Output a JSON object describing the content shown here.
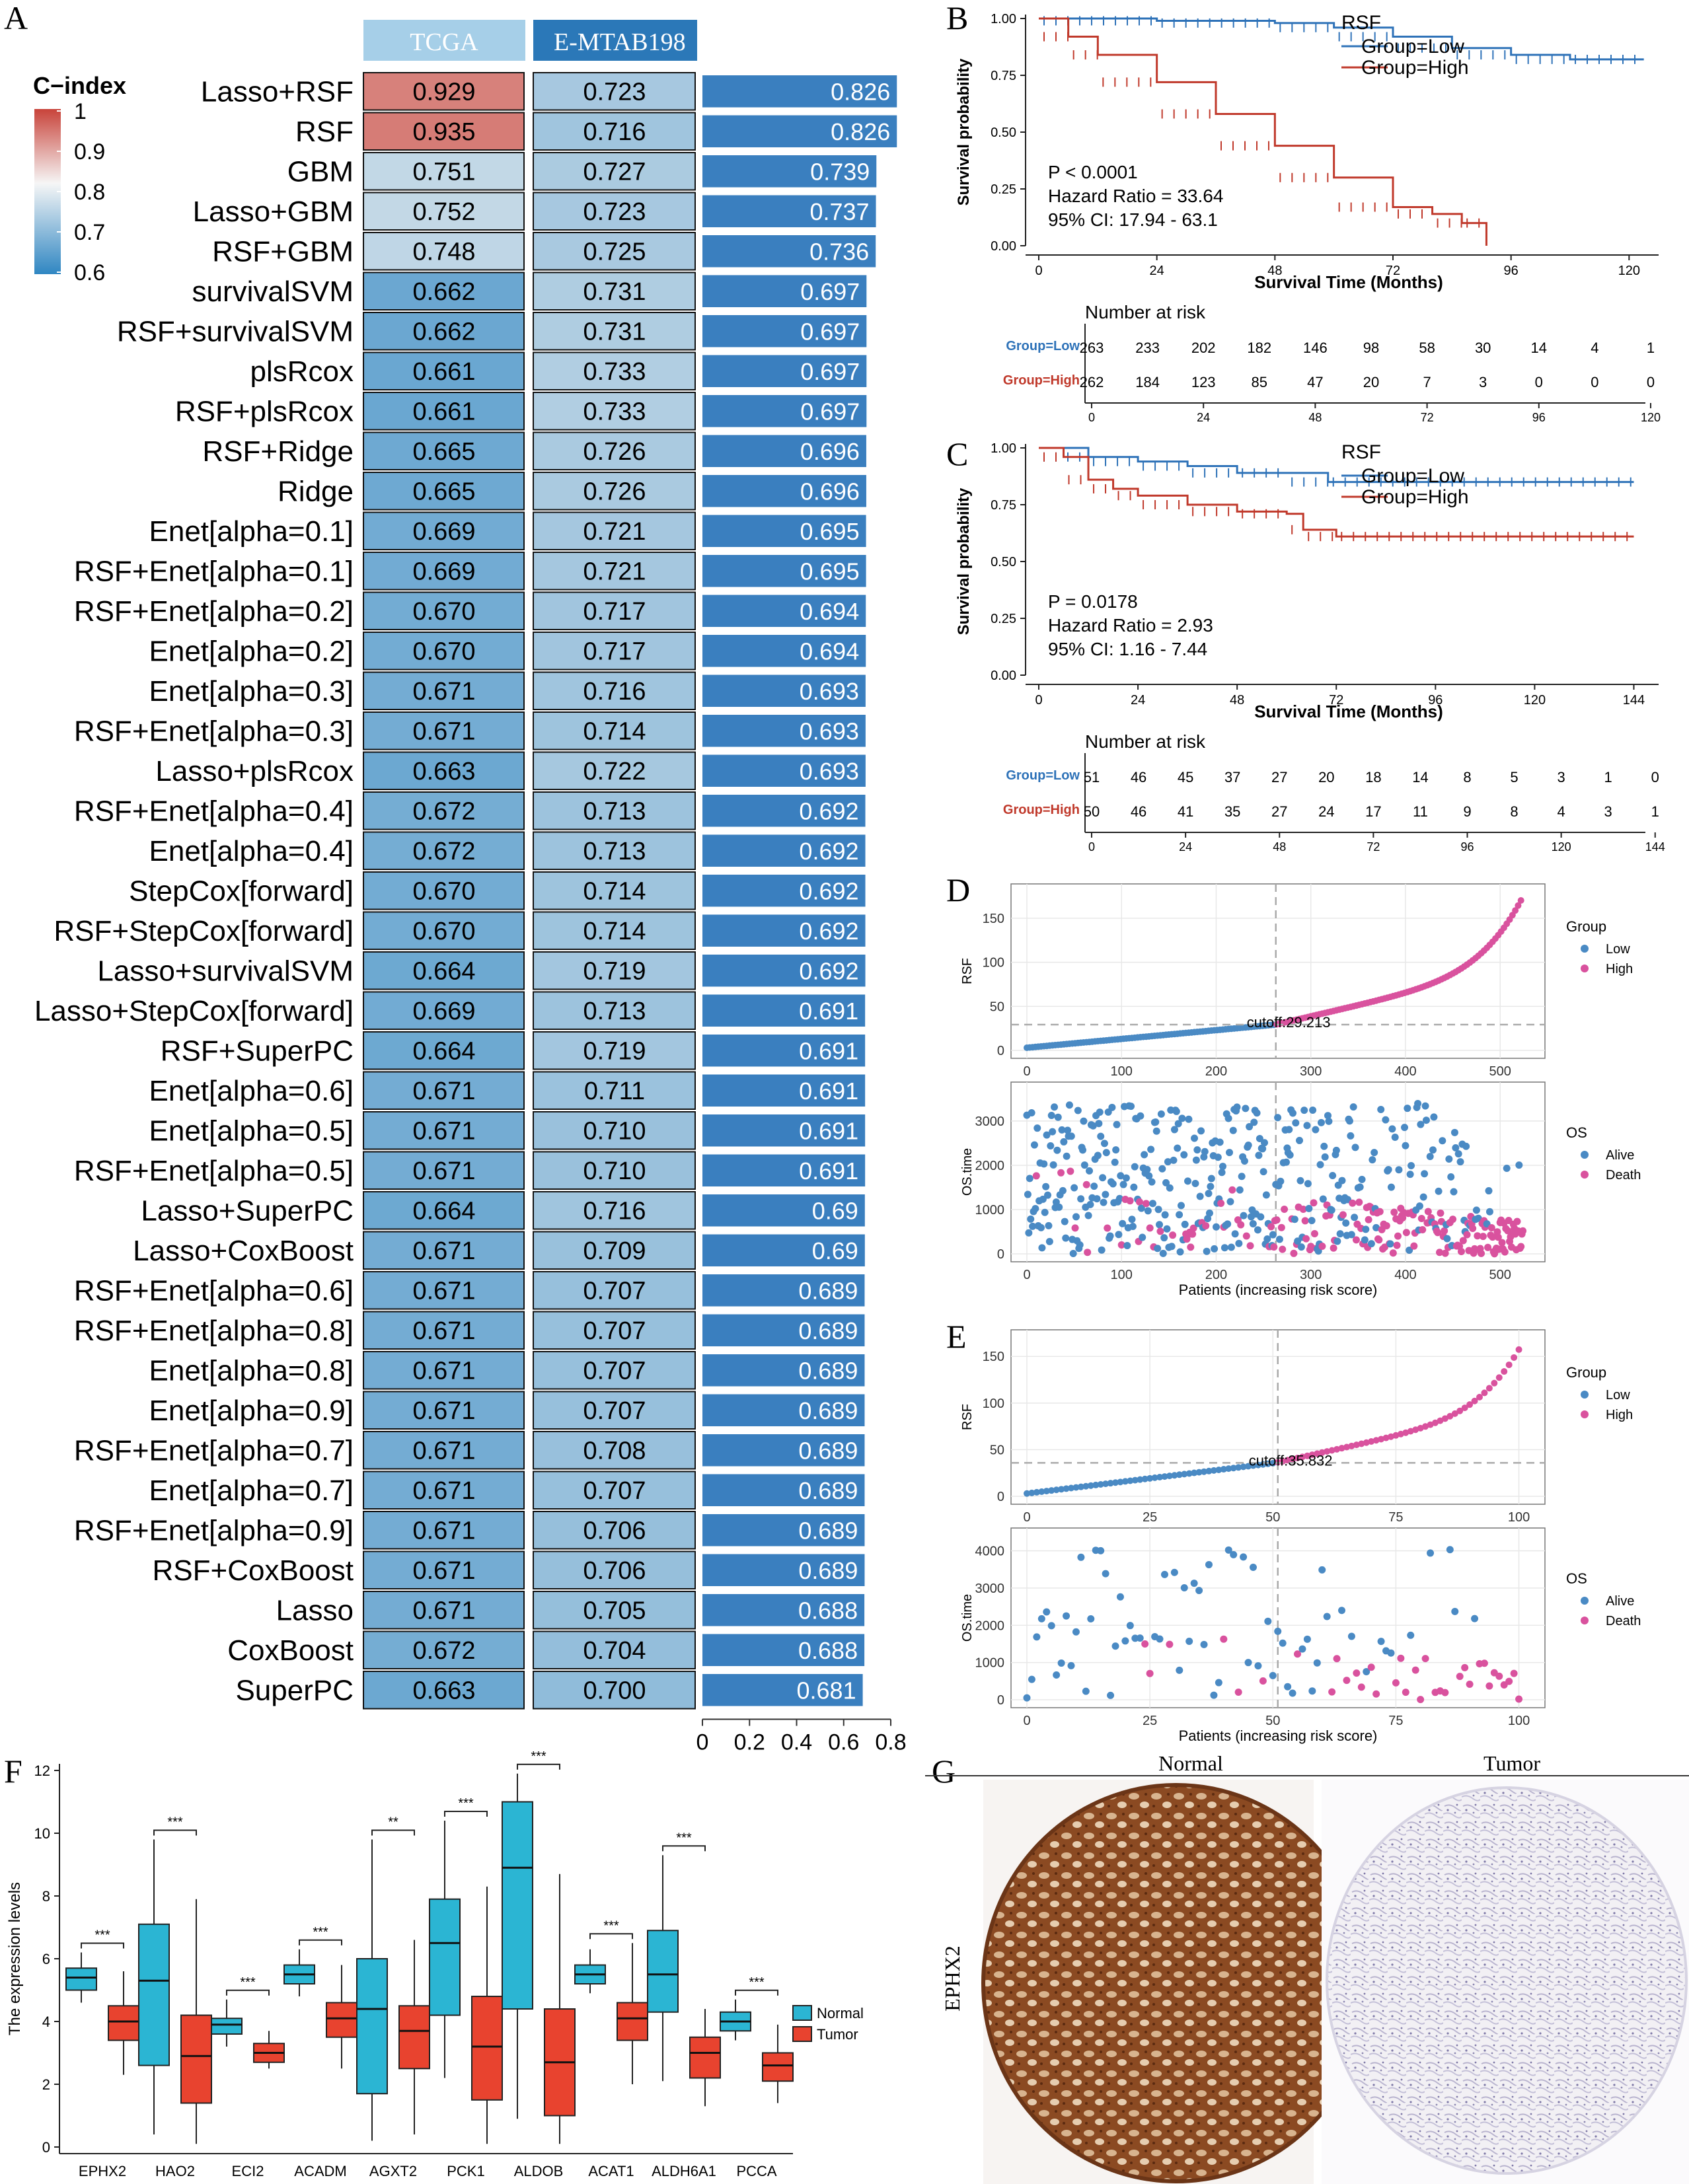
{
  "panels": {
    "A": "A",
    "B": "B",
    "C": "C",
    "D": "D",
    "E": "E",
    "F": "F",
    "G": "G"
  },
  "heatmap": {
    "colorbar_title": "C−index",
    "colorbar_ticks": [
      "1",
      "0.9",
      "0.8",
      "0.7",
      "0.6"
    ],
    "col_headers": [
      "TCGA",
      "E-MTAB198"
    ],
    "colors": {
      "high": "#d6604d",
      "mid": "#f7f7f7",
      "low": "#2f86c2",
      "bar": "#3a7fbf",
      "tcga_header": "#a6cfe8",
      "emtab_header": "#2b78b8"
    },
    "bar_axis_ticks": [
      "0",
      "0.2",
      "0.4",
      "0.6",
      "0.8"
    ],
    "rows": [
      {
        "model": "Lasso+RSF",
        "tcga": 0.929,
        "emtab": 0.723,
        "mean": 0.826
      },
      {
        "model": "RSF",
        "tcga": 0.935,
        "emtab": 0.716,
        "mean": 0.826
      },
      {
        "model": "GBM",
        "tcga": 0.751,
        "emtab": 0.727,
        "mean": 0.739
      },
      {
        "model": "Lasso+GBM",
        "tcga": 0.752,
        "emtab": 0.723,
        "mean": 0.737
      },
      {
        "model": "RSF+GBM",
        "tcga": 0.748,
        "emtab": 0.725,
        "mean": 0.736
      },
      {
        "model": "survivalSVM",
        "tcga": 0.662,
        "emtab": 0.731,
        "mean": 0.697
      },
      {
        "model": "RSF+survivalSVM",
        "tcga": 0.662,
        "emtab": 0.731,
        "mean": 0.697
      },
      {
        "model": "plsRcox",
        "tcga": 0.661,
        "emtab": 0.733,
        "mean": 0.697
      },
      {
        "model": "RSF+plsRcox",
        "tcga": 0.661,
        "emtab": 0.733,
        "mean": 0.697
      },
      {
        "model": "RSF+Ridge",
        "tcga": 0.665,
        "emtab": 0.726,
        "mean": 0.696
      },
      {
        "model": "Ridge",
        "tcga": 0.665,
        "emtab": 0.726,
        "mean": 0.696
      },
      {
        "model": "Enet[alpha=0.1]",
        "tcga": 0.669,
        "emtab": 0.721,
        "mean": 0.695
      },
      {
        "model": "RSF+Enet[alpha=0.1]",
        "tcga": 0.669,
        "emtab": 0.721,
        "mean": 0.695
      },
      {
        "model": "RSF+Enet[alpha=0.2]",
        "tcga": 0.67,
        "emtab": 0.717,
        "mean": 0.694
      },
      {
        "model": "Enet[alpha=0.2]",
        "tcga": 0.67,
        "emtab": 0.717,
        "mean": 0.694
      },
      {
        "model": "Enet[alpha=0.3]",
        "tcga": 0.671,
        "emtab": 0.716,
        "mean": 0.693
      },
      {
        "model": "RSF+Enet[alpha=0.3]",
        "tcga": 0.671,
        "emtab": 0.714,
        "mean": 0.693
      },
      {
        "model": "Lasso+plsRcox",
        "tcga": 0.663,
        "emtab": 0.722,
        "mean": 0.693
      },
      {
        "model": "RSF+Enet[alpha=0.4]",
        "tcga": 0.672,
        "emtab": 0.713,
        "mean": 0.692
      },
      {
        "model": "Enet[alpha=0.4]",
        "tcga": 0.672,
        "emtab": 0.713,
        "mean": 0.692
      },
      {
        "model": "StepCox[forward]",
        "tcga": 0.67,
        "emtab": 0.714,
        "mean": 0.692
      },
      {
        "model": "RSF+StepCox[forward]",
        "tcga": 0.67,
        "emtab": 0.714,
        "mean": 0.692
      },
      {
        "model": "Lasso+survivalSVM",
        "tcga": 0.664,
        "emtab": 0.719,
        "mean": 0.692
      },
      {
        "model": "Lasso+StepCox[forward]",
        "tcga": 0.669,
        "emtab": 0.713,
        "mean": 0.691
      },
      {
        "model": "RSF+SuperPC",
        "tcga": 0.664,
        "emtab": 0.719,
        "mean": 0.691
      },
      {
        "model": "Enet[alpha=0.6]",
        "tcga": 0.671,
        "emtab": 0.711,
        "mean": 0.691
      },
      {
        "model": "Enet[alpha=0.5]",
        "tcga": 0.671,
        "emtab": 0.71,
        "mean": 0.691
      },
      {
        "model": "RSF+Enet[alpha=0.5]",
        "tcga": 0.671,
        "emtab": 0.71,
        "mean": 0.691
      },
      {
        "model": "Lasso+SuperPC",
        "tcga": 0.664,
        "emtab": 0.716,
        "mean": 0.69
      },
      {
        "model": "Lasso+CoxBoost",
        "tcga": 0.671,
        "emtab": 0.709,
        "mean": 0.69
      },
      {
        "model": "RSF+Enet[alpha=0.6]",
        "tcga": 0.671,
        "emtab": 0.707,
        "mean": 0.689
      },
      {
        "model": "RSF+Enet[alpha=0.8]",
        "tcga": 0.671,
        "emtab": 0.707,
        "mean": 0.689
      },
      {
        "model": "Enet[alpha=0.8]",
        "tcga": 0.671,
        "emtab": 0.707,
        "mean": 0.689
      },
      {
        "model": "Enet[alpha=0.9]",
        "tcga": 0.671,
        "emtab": 0.707,
        "mean": 0.689
      },
      {
        "model": "RSF+Enet[alpha=0.7]",
        "tcga": 0.671,
        "emtab": 0.708,
        "mean": 0.689
      },
      {
        "model": "Enet[alpha=0.7]",
        "tcga": 0.671,
        "emtab": 0.707,
        "mean": 0.689
      },
      {
        "model": "RSF+Enet[alpha=0.9]",
        "tcga": 0.671,
        "emtab": 0.706,
        "mean": 0.689
      },
      {
        "model": "RSF+CoxBoost",
        "tcga": 0.671,
        "emtab": 0.706,
        "mean": 0.689
      },
      {
        "model": "Lasso",
        "tcga": 0.671,
        "emtab": 0.705,
        "mean": 0.688
      },
      {
        "model": "CoxBoost",
        "tcga": 0.672,
        "emtab": 0.704,
        "mean": 0.688
      },
      {
        "model": "SuperPC",
        "tcga": 0.663,
        "emtab": 0.7,
        "mean": 0.681
      }
    ]
  },
  "km_common": {
    "ylabel": "Survival probability",
    "xlabel": "Survival Time (Months)",
    "yticks": [
      "0.00",
      "0.25",
      "0.50",
      "0.75",
      "1.00"
    ],
    "legend_title": "RSF",
    "legend_low": "Group=Low",
    "legend_high": "Group=High",
    "risk_title": "Number at risk",
    "colors": {
      "low": "#2e72b8",
      "high": "#c0392b"
    }
  },
  "km_B": {
    "p": "P < 0.0001",
    "hr": "Hazard Ratio = 33.64",
    "ci": "95% CI: 17.94 - 63.1",
    "xticks": [
      "0",
      "24",
      "48",
      "72",
      "96",
      "120"
    ],
    "xmax": 126,
    "risk_times": [
      0,
      12,
      24,
      36,
      48,
      60,
      72,
      84,
      96,
      108,
      120
    ],
    "risk_low": [
      "263",
      "233",
      "202",
      "182",
      "146",
      "98",
      "58",
      "30",
      "14",
      "4",
      "1"
    ],
    "risk_high": [
      "262",
      "184",
      "123",
      "85",
      "47",
      "20",
      "7",
      "3",
      "0",
      "0",
      "0"
    ],
    "low_curve": [
      [
        0,
        1.0
      ],
      [
        24,
        0.99
      ],
      [
        48,
        0.98
      ],
      [
        60,
        0.96
      ],
      [
        72,
        0.92
      ],
      [
        84,
        0.87
      ],
      [
        96,
        0.84
      ],
      [
        108,
        0.82
      ],
      [
        123,
        0.82
      ]
    ],
    "high_curve": [
      [
        0,
        1.0
      ],
      [
        6,
        0.92
      ],
      [
        12,
        0.84
      ],
      [
        24,
        0.72
      ],
      [
        36,
        0.58
      ],
      [
        48,
        0.44
      ],
      [
        60,
        0.3
      ],
      [
        72,
        0.17
      ],
      [
        80,
        0.14
      ],
      [
        86,
        0.1
      ],
      [
        90,
        0.1
      ],
      [
        91,
        0.0
      ]
    ]
  },
  "km_C": {
    "p": "P = 0.0178",
    "hr": "Hazard Ratio = 2.93",
    "ci": "95% CI: 1.16 - 7.44",
    "xticks": [
      "0",
      "24",
      "48",
      "72",
      "96",
      "120",
      "144"
    ],
    "xmax": 150,
    "risk_times": [
      0,
      12,
      24,
      36,
      48,
      60,
      72,
      84,
      96,
      108,
      120,
      132,
      144
    ],
    "risk_low": [
      "51",
      "46",
      "45",
      "37",
      "27",
      "20",
      "18",
      "14",
      "8",
      "5",
      "3",
      "1",
      "0"
    ],
    "risk_high": [
      "50",
      "46",
      "41",
      "35",
      "27",
      "24",
      "17",
      "11",
      "9",
      "8",
      "4",
      "3",
      "1"
    ],
    "low_curve": [
      [
        0,
        1.0
      ],
      [
        12,
        0.96
      ],
      [
        24,
        0.94
      ],
      [
        36,
        0.92
      ],
      [
        48,
        0.89
      ],
      [
        60,
        0.89
      ],
      [
        70,
        0.85
      ],
      [
        144,
        0.85
      ]
    ],
    "high_curve": [
      [
        0,
        1.0
      ],
      [
        6,
        0.96
      ],
      [
        12,
        0.86
      ],
      [
        18,
        0.82
      ],
      [
        24,
        0.79
      ],
      [
        36,
        0.75
      ],
      [
        48,
        0.72
      ],
      [
        60,
        0.71
      ],
      [
        64,
        0.64
      ],
      [
        72,
        0.61
      ],
      [
        144,
        0.61
      ]
    ]
  },
  "risk_D": {
    "ylabel": "RSF",
    "cutoff_label": "cutoff:29.213",
    "cutoff": 29.213,
    "n": 525,
    "split": 263,
    "yticks": [
      "0",
      "50",
      "100",
      "150"
    ],
    "xticks": [
      "0",
      "100",
      "200",
      "300",
      "400",
      "500"
    ],
    "ymax": 180,
    "legend_title": "Group",
    "legend_low": "Low",
    "legend_high": "High",
    "scatter_ylabel": "OS.time",
    "scatter_xlabel": "Patients (increasing risk score)",
    "scatter_yticks": [
      "0",
      "1000",
      "2000",
      "3000"
    ],
    "scatter_ymax": 3700,
    "os_title": "OS",
    "os_alive": "Alive",
    "os_death": "Death",
    "colors": {
      "low": "#4a8ac4",
      "high": "#d9529e"
    }
  },
  "risk_E": {
    "ylabel": "RSF",
    "cutoff_label": "cutoff:35.832",
    "cutoff": 35.832,
    "n": 101,
    "split": 51,
    "yticks": [
      "0",
      "50",
      "100",
      "150"
    ],
    "xticks": [
      "0",
      "25",
      "50",
      "75",
      "100"
    ],
    "ymax": 170,
    "legend_title": "Group",
    "legend_low": "Low",
    "legend_high": "High",
    "scatter_ylabel": "OS.time",
    "scatter_xlabel": "Patients (increasing risk score)",
    "scatter_yticks": [
      "0",
      "1000",
      "2000",
      "3000",
      "4000"
    ],
    "scatter_ymax": 4400,
    "os_title": "OS",
    "os_alive": "Alive",
    "os_death": "Death",
    "colors": {
      "low": "#4a8ac4",
      "high": "#d9529e"
    }
  },
  "chart_data": {
    "type": "box",
    "title": "",
    "ylabel": "The expression levels",
    "ylim": [
      0,
      12
    ],
    "yticks": [
      "0",
      "2",
      "4",
      "6",
      "8",
      "10",
      "12"
    ],
    "legend": [
      "Normal",
      "Tumor"
    ],
    "colors": {
      "normal": "#2bb5d3",
      "tumor": "#e8432f"
    },
    "categories": [
      "EPHX2",
      "HAO2",
      "ECI2",
      "ACADM",
      "AGXT2",
      "PCK1",
      "ALDOB",
      "ACAT1",
      "ALDH6A1",
      "PCCA"
    ],
    "significance": [
      "***",
      "***",
      "***",
      "***",
      "**",
      "***",
      "***",
      "***",
      "***",
      "***"
    ],
    "series": [
      {
        "name": "Normal",
        "boxes": [
          {
            "min": 4.6,
            "q1": 5.0,
            "median": 5.4,
            "q3": 5.7,
            "max": 6.2
          },
          {
            "min": 0.4,
            "q1": 2.6,
            "median": 5.3,
            "q3": 7.1,
            "max": 9.8
          },
          {
            "min": 3.2,
            "q1": 3.6,
            "median": 3.9,
            "q3": 4.1,
            "max": 4.7
          },
          {
            "min": 4.8,
            "q1": 5.2,
            "median": 5.5,
            "q3": 5.8,
            "max": 6.3
          },
          {
            "min": 0.2,
            "q1": 1.7,
            "median": 4.4,
            "q3": 6.0,
            "max": 9.8
          },
          {
            "min": 2.2,
            "q1": 4.2,
            "median": 6.5,
            "q3": 7.9,
            "max": 10.4
          },
          {
            "min": 0.9,
            "q1": 4.4,
            "median": 8.9,
            "q3": 11.0,
            "max": 11.9
          },
          {
            "min": 4.9,
            "q1": 5.2,
            "median": 5.5,
            "q3": 5.8,
            "max": 6.3
          },
          {
            "min": 2.1,
            "q1": 4.3,
            "median": 5.5,
            "q3": 6.9,
            "max": 9.3
          },
          {
            "min": 3.4,
            "q1": 3.7,
            "median": 4.0,
            "q3": 4.3,
            "max": 4.7
          }
        ]
      },
      {
        "name": "Tumor",
        "boxes": [
          {
            "min": 2.3,
            "q1": 3.4,
            "median": 4.0,
            "q3": 4.5,
            "max": 5.6
          },
          {
            "min": 0.1,
            "q1": 1.4,
            "median": 2.9,
            "q3": 4.2,
            "max": 7.9
          },
          {
            "min": 2.5,
            "q1": 2.7,
            "median": 3.0,
            "q3": 3.3,
            "max": 3.7
          },
          {
            "min": 2.5,
            "q1": 3.5,
            "median": 4.1,
            "q3": 4.6,
            "max": 5.8
          },
          {
            "min": 0.4,
            "q1": 2.5,
            "median": 3.7,
            "q3": 4.5,
            "max": 6.6
          },
          {
            "min": 0.1,
            "q1": 1.5,
            "median": 3.2,
            "q3": 4.8,
            "max": 8.3
          },
          {
            "min": 0.1,
            "q1": 1.0,
            "median": 2.7,
            "q3": 4.4,
            "max": 8.7
          },
          {
            "min": 2.0,
            "q1": 3.4,
            "median": 4.1,
            "q3": 4.6,
            "max": 6.5
          },
          {
            "min": 1.3,
            "q1": 2.2,
            "median": 3.0,
            "q3": 3.5,
            "max": 4.4
          },
          {
            "min": 1.4,
            "q1": 2.1,
            "median": 2.6,
            "q3": 3.0,
            "max": 3.9
          }
        ]
      }
    ]
  },
  "ihc": {
    "normal_label": "Normal",
    "tumor_label": "Tumor",
    "gene_label": "EPHX2"
  }
}
